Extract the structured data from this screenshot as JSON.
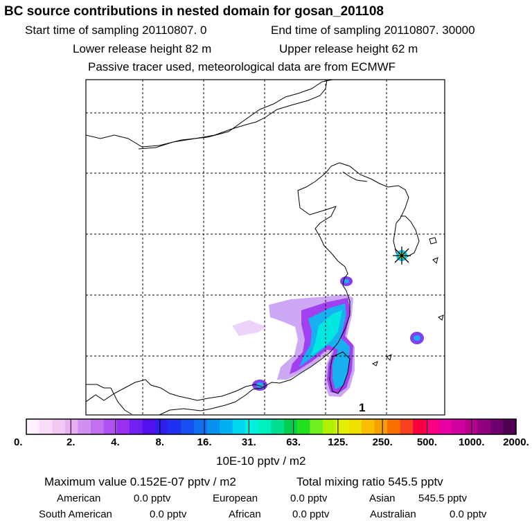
{
  "header": {
    "title": "BC  source contributions in nested domain for gosan_201108",
    "start_label": "Start time of sampling 20110807.     0",
    "end_label": "End time of sampling 20110807. 30000",
    "lower_release": "Lower release height   82 m",
    "upper_release": "Upper release height   62 m",
    "tracer_note": "Passive tracer used, meteorological data are from ECMWF"
  },
  "map": {
    "page_number": "1",
    "receptor_marker": "star-receptor-icon"
  },
  "colorbar": {
    "tick_labels": [
      "0.",
      "2.",
      "4.",
      "8.",
      "16.",
      "31.",
      "63.",
      "125.",
      "250.",
      "500.",
      "1000.",
      "2000."
    ],
    "unit_label": "10E-10 pptv / m2",
    "colors": [
      "#fff0ff",
      "#f8dcf8",
      "#f0c8f0",
      "#e8b0f0",
      "#d090f0",
      "#c070f0",
      "#b050f0",
      "#9930f0",
      "#7020f0",
      "#5010f0",
      "#3020f0",
      "#2030f0",
      "#1850f0",
      "#1070f0",
      "#0890f0",
      "#00b0f0",
      "#00d8f0",
      "#00f0e0",
      "#00f0c0",
      "#00e090",
      "#00d050",
      "#20e020",
      "#70f020",
      "#b0f000",
      "#e0f000",
      "#f0e000",
      "#f8c000",
      "#f8a000",
      "#f87000",
      "#f84020",
      "#f80040",
      "#f80080",
      "#e800a0",
      "#d000a0",
      "#b80090",
      "#900080",
      "#700070",
      "#500050"
    ]
  },
  "chart_data": {
    "type": "heatmap",
    "title": "BC  source contributions in nested domain for gosan_201108",
    "colorbar_levels": [
      0,
      2,
      4,
      8,
      16,
      31,
      63,
      125,
      250,
      500,
      1000,
      2000
    ],
    "colorbar_unit": "10E-10 pptv / m2",
    "grid": true
  },
  "summary": {
    "max_label": "Maximum value  0.152E-07 pptv / m2",
    "total_label": "Total mixing ratio      545.5 pptv",
    "american_label": "American",
    "american_value": "0.0 pptv",
    "european_label": "European",
    "european_value": "0.0 pptv",
    "asian_label": "Asian",
    "asian_value": "545.5 pptv",
    "south_american_label": "South American",
    "south_american_value": "0.0 pptv",
    "african_label": "African",
    "african_value": "0.0 pptv",
    "australian_label": "Australian",
    "australian_value": "0.0 pptv"
  }
}
